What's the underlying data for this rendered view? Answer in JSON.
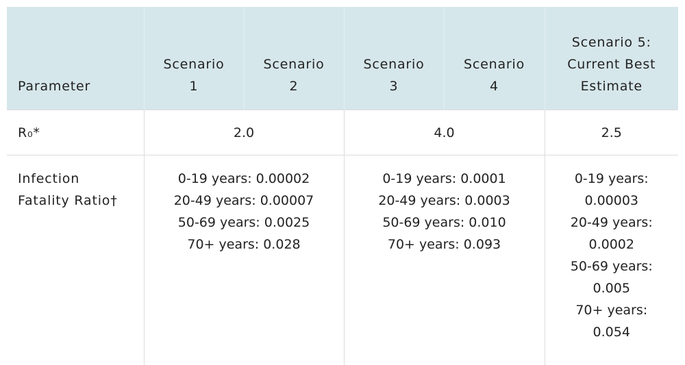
{
  "table": {
    "header": [
      [
        "Parameter"
      ],
      [
        "Scenario",
        "1"
      ],
      [
        "Scenario",
        "2"
      ],
      [
        "Scenario",
        "3"
      ],
      [
        "Scenario",
        "4"
      ],
      [
        "Scenario 5:",
        "Current Best",
        "Estimate"
      ]
    ],
    "rows": [
      {
        "label": "R₀*",
        "cells": [
          "2.0",
          "4.0",
          "2.5"
        ]
      },
      {
        "label": "Infection Fatality Ratio†",
        "cells": [
          [
            "0-19 years: 0.00002",
            "20-49 years: 0.00007",
            "50-69 years: 0.0025",
            "70+ years: 0.028"
          ],
          [
            "0-19 years: 0.0001",
            "20-49 years: 0.0003",
            "50-69 years: 0.010",
            "70+ years: 0.093"
          ],
          [
            "0-19 years: 0.00003",
            "20-49 years: 0.0002",
            "50-69 years: 0.005",
            "70+ years: 0.054"
          ]
        ]
      }
    ]
  }
}
